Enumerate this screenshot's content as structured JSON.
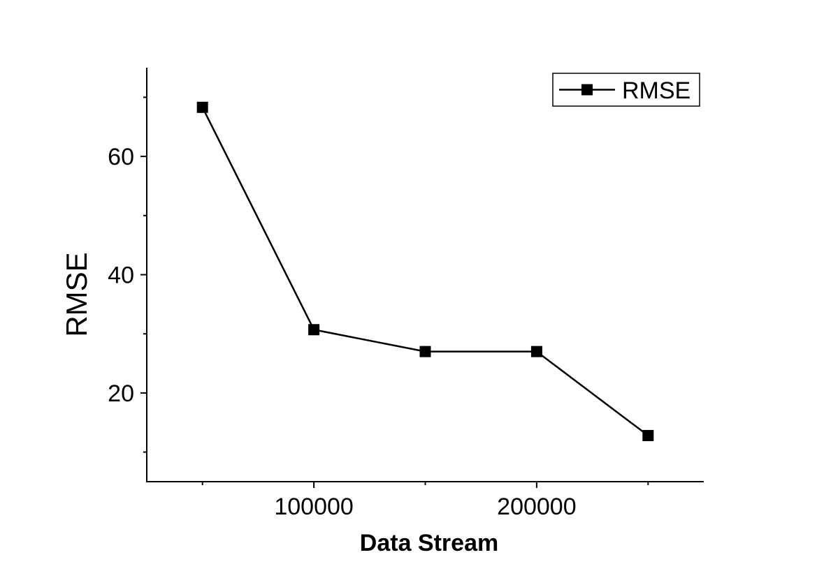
{
  "chart_data": {
    "type": "line",
    "xlabel": "Data Stream",
    "ylabel": "RMSE",
    "xlim": [
      25000,
      275000
    ],
    "ylim": [
      5,
      75
    ],
    "x_ticks": [
      100000,
      200000
    ],
    "x_tick_labels": [
      "100000",
      "200000"
    ],
    "x_minor_ticks": [
      50000,
      150000,
      250000
    ],
    "y_ticks": [
      20,
      40,
      60
    ],
    "y_tick_labels": [
      "20",
      "40",
      "60"
    ],
    "y_minor_ticks": [
      10,
      30,
      50,
      70
    ],
    "grid": false,
    "legend_position": "top-right",
    "series": [
      {
        "name": "RMSE",
        "marker": "square",
        "color": "#000000",
        "x": [
          50000,
          100000,
          150000,
          200000,
          250000
        ],
        "y": [
          68.3,
          30.7,
          27.0,
          27.0,
          12.8
        ]
      }
    ]
  }
}
